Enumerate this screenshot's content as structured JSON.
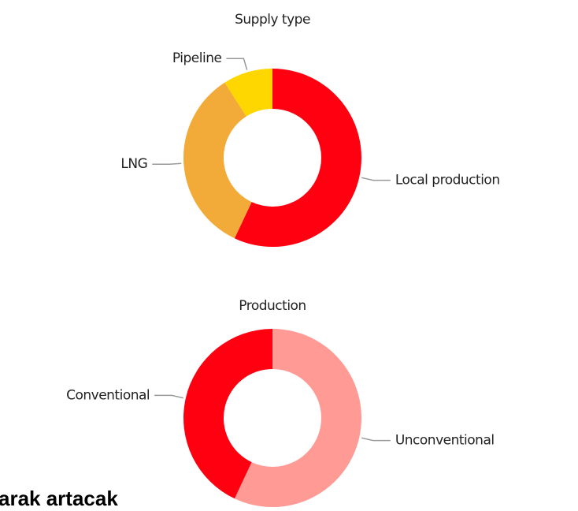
{
  "chart_data": [
    {
      "type": "donut",
      "title": "Supply type",
      "categories": [
        "Local production",
        "LNG",
        "Pipeline"
      ],
      "values": [
        57,
        34,
        9
      ],
      "colors": [
        "#ff0010",
        "#f2aa38",
        "#ffd700"
      ]
    },
    {
      "type": "donut",
      "title": "Production",
      "categories": [
        "Unconventional",
        "Conventional"
      ],
      "values": [
        57,
        43
      ],
      "colors": [
        "#ff9a94",
        "#ff0010"
      ]
    }
  ],
  "caption": "arak artacak"
}
